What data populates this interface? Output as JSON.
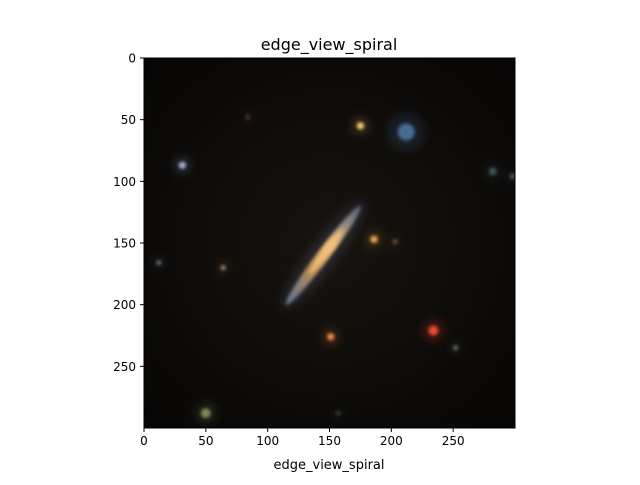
{
  "chart_data": {
    "type": "image",
    "title": "edge_view_spiral",
    "xlabel": "edge_view_spiral",
    "ylabel": "",
    "xlim": [
      0,
      300
    ],
    "ylim": [
      300,
      0
    ],
    "y_inverted": true,
    "xticks": [
      0,
      50,
      100,
      150,
      200,
      250
    ],
    "yticks": [
      0,
      50,
      100,
      150,
      200,
      250
    ],
    "grid": false,
    "background_color": "#0d0b08",
    "main_object": {
      "label": "edge-on spiral galaxy",
      "center": [
        145,
        160
      ],
      "length": 100,
      "width": 10,
      "angle_deg": -53,
      "colors": [
        "#f3c47a",
        "#b98f5e",
        "#7d90b8"
      ]
    },
    "sources": [
      {
        "x": 175,
        "y": 55,
        "r": 3,
        "color": "#ffd070"
      },
      {
        "x": 212,
        "y": 60,
        "r": 7,
        "color": "#4a6f9a"
      },
      {
        "x": 31,
        "y": 87,
        "r": 3,
        "color": "#aab6d8"
      },
      {
        "x": 186,
        "y": 147,
        "r": 3,
        "color": "#f5b050"
      },
      {
        "x": 203,
        "y": 149,
        "r": 2,
        "color": "#7c5a40"
      },
      {
        "x": 64,
        "y": 170,
        "r": 2,
        "color": "#b09070"
      },
      {
        "x": 12,
        "y": 166,
        "r": 2,
        "color": "#6c7c8c"
      },
      {
        "x": 234,
        "y": 221,
        "r": 4,
        "color": "#ff4a30"
      },
      {
        "x": 151,
        "y": 226,
        "r": 3,
        "color": "#ff8a4a"
      },
      {
        "x": 252,
        "y": 235,
        "r": 2,
        "color": "#6a7a70"
      },
      {
        "x": 50,
        "y": 288,
        "r": 4,
        "color": "#7f8f5a"
      },
      {
        "x": 282,
        "y": 92,
        "r": 3,
        "color": "#3f5f64"
      },
      {
        "x": 298,
        "y": 96,
        "r": 2,
        "color": "#5a6a80"
      },
      {
        "x": 84,
        "y": 48,
        "r": 2,
        "color": "#553a30"
      },
      {
        "x": 157,
        "y": 288,
        "r": 2,
        "color": "#3a4040"
      }
    ]
  }
}
